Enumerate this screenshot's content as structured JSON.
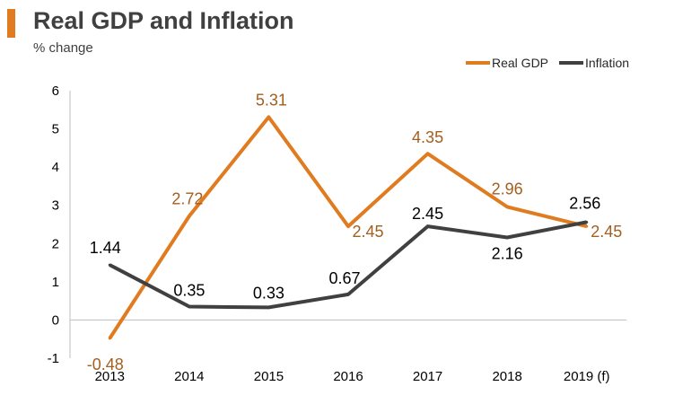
{
  "chart_data": {
    "type": "line",
    "title": "Real GDP and Inflation",
    "subtitle": "% change",
    "categories": [
      "2013",
      "2014",
      "2015",
      "2016",
      "2017",
      "2018",
      "2019 (f)"
    ],
    "ylim": [
      -1,
      6
    ],
    "yticks": [
      "-1",
      "0",
      "1",
      "2",
      "3",
      "4",
      "5",
      "6"
    ],
    "xlabel": "",
    "ylabel": "",
    "legend_position": "top-right",
    "series": [
      {
        "name": "Real GDP",
        "color": "#E07B1F",
        "label_color": "#A35F1E",
        "values": [
          -0.48,
          2.72,
          5.31,
          2.45,
          4.35,
          2.96,
          2.45
        ],
        "labels": [
          "-0.48",
          "2.72",
          "5.31",
          "2.45",
          "4.35",
          "2.96",
          "2.45"
        ]
      },
      {
        "name": "Inflation",
        "color": "#404040",
        "label_color": "#000000",
        "values": [
          1.44,
          0.35,
          0.33,
          0.67,
          2.45,
          2.16,
          2.56
        ],
        "labels": [
          "1.44",
          "0.35",
          "0.33",
          "0.67",
          "2.45",
          "2.16",
          "2.56"
        ]
      }
    ]
  }
}
